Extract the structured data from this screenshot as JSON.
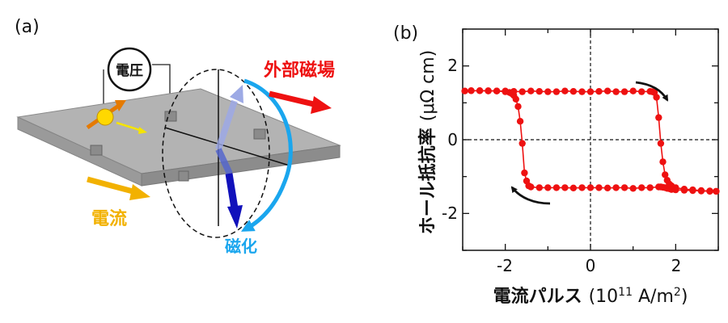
{
  "panel_a": {
    "label": "(a)",
    "voltage_label": "電圧",
    "field_label": "外部磁場",
    "current_label": "電流",
    "magnetization_label": "磁化"
  },
  "panel_b": {
    "label": "(b)"
  },
  "colors": {
    "hall_curve": "#ee1111",
    "field_arrow": "#ee1111",
    "current": "#f2b100",
    "magnetization_arc": "#1aa6ee",
    "magnetization_arrow": "#1111cc",
    "slab": "#a8a8a8"
  },
  "chart_data": {
    "type": "line",
    "xlabel_main": "電流パルス",
    "xlabel_unit_pre": "(10",
    "xlabel_unit_exp": "11",
    "xlabel_unit_mid": " A/m",
    "xlabel_unit_exp2": "2",
    "xlabel_unit_post": ")",
    "ylabel_main": "ホール抵抗率",
    "ylabel_unit": "(μΩ cm)",
    "xlim": [
      -3,
      3
    ],
    "ylim": [
      -3,
      3
    ],
    "xticks": [
      -2,
      0,
      2
    ],
    "yticks": [
      -2,
      0,
      2
    ],
    "xtick_labels": [
      "-2",
      "0",
      "2"
    ],
    "ytick_labels": [
      "-2",
      "0",
      "2"
    ],
    "zero_lines": "dashed",
    "series": [
      {
        "x": [
          -2.95,
          -2.8,
          -2.6,
          -2.4,
          -2.2,
          -2.0,
          -1.9,
          -1.85,
          -1.8,
          -1.75,
          -1.7,
          -1.65,
          -1.6,
          -1.55,
          -1.5,
          -1.45,
          -1.4,
          -1.2,
          -1.0,
          -0.8,
          -0.6,
          -0.4,
          -0.2,
          0.0,
          0.2,
          0.4,
          0.6,
          0.8,
          1.0,
          1.2,
          1.4,
          1.6,
          1.65,
          1.7,
          1.75,
          1.8,
          1.85,
          1.9,
          2.0,
          2.2,
          2.4,
          2.6,
          2.8,
          2.95
        ],
        "y": [
          1.32,
          1.33,
          1.33,
          1.32,
          1.32,
          1.3,
          1.28,
          1.25,
          1.2,
          1.1,
          0.9,
          0.5,
          -0.1,
          -0.9,
          -1.12,
          -1.25,
          -1.28,
          -1.3,
          -1.3,
          -1.3,
          -1.3,
          -1.31,
          -1.3,
          -1.3,
          -1.3,
          -1.31,
          -1.3,
          -1.3,
          -1.32,
          -1.3,
          -1.3,
          -1.28,
          -1.28,
          -1.29,
          -1.3,
          -1.32,
          -1.33,
          -1.35,
          -1.36,
          -1.37,
          -1.38,
          -1.39,
          -1.4,
          -1.4
        ]
      },
      {
        "x": [
          2.95,
          2.8,
          2.6,
          2.4,
          2.2,
          2.0,
          1.9,
          1.85,
          1.8,
          1.75,
          1.7,
          1.65,
          1.6,
          1.55,
          1.5,
          1.45,
          1.4,
          1.2,
          1.0,
          0.8,
          0.6,
          0.4,
          0.2,
          0.0,
          -0.2,
          -0.4,
          -0.6,
          -0.8,
          -1.0,
          -1.2,
          -1.4,
          -1.6,
          -1.8,
          -2.0,
          -2.2,
          -2.4,
          -2.6,
          -2.8
        ],
        "y": [
          -1.4,
          -1.39,
          -1.38,
          -1.36,
          -1.34,
          -1.3,
          -1.25,
          -1.2,
          -1.1,
          -0.95,
          -0.6,
          -0.1,
          0.6,
          1.15,
          1.28,
          1.3,
          1.31,
          1.3,
          1.32,
          1.3,
          1.3,
          1.32,
          1.31,
          1.3,
          1.3,
          1.31,
          1.32,
          1.3,
          1.3,
          1.31,
          1.32,
          1.3,
          1.31,
          1.32,
          1.32,
          1.33,
          1.33,
          1.33
        ]
      }
    ]
  }
}
